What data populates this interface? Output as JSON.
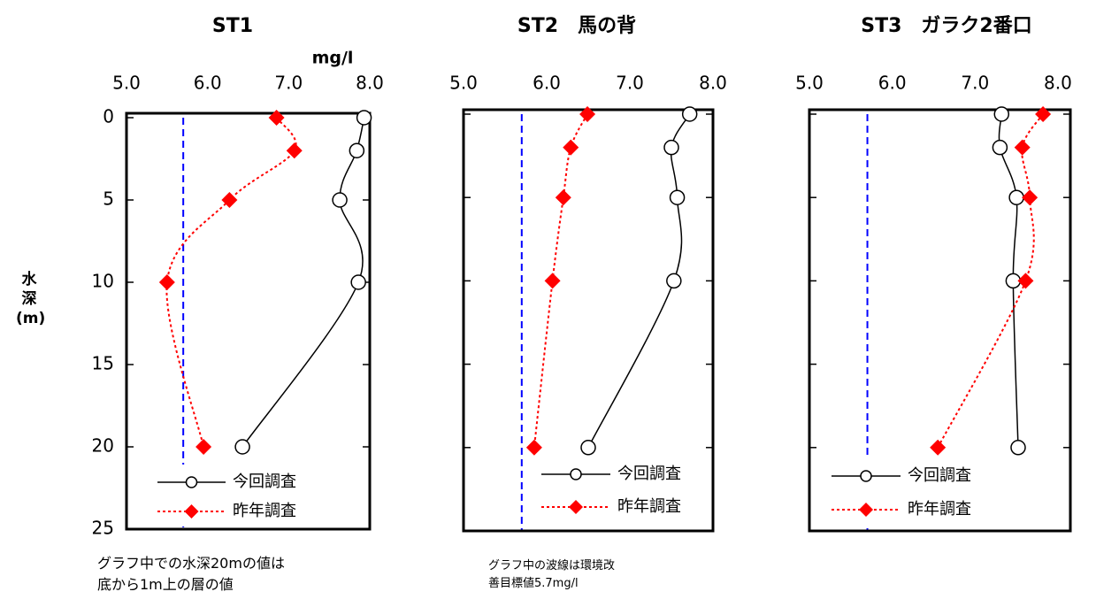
{
  "chart_data": [
    {
      "type": "line",
      "title": "ST1",
      "x_label": "mg/l",
      "y_label": [
        "水",
        "深",
        "(m)"
      ],
      "ytick_labels": true,
      "y": [
        0,
        2,
        5,
        10,
        20
      ],
      "xlim": [
        5,
        8
      ],
      "xticks": [
        {
          "value": 5,
          "label": "5.0"
        },
        {
          "value": 6,
          "label": "6.0"
        },
        {
          "value": 7,
          "label": "7.0"
        },
        {
          "value": 8,
          "label": "8.0"
        }
      ],
      "ylim": [
        0,
        25
      ],
      "yticks": [
        0,
        5,
        10,
        15,
        20,
        25
      ],
      "target": 5.7,
      "target_color": "#0000ff",
      "series": [
        {
          "name": "今回調査",
          "color": "#000000",
          "values": [
            7.93,
            7.84,
            7.63,
            7.86,
            6.43
          ]
        },
        {
          "name": "昨年調査",
          "color": "#ff0000",
          "values": [
            6.85,
            7.07,
            6.27,
            5.5,
            5.95
          ]
        }
      ],
      "annotations": [
        "グラフ中での水深20mの値は",
        "底から1m上の層の値"
      ]
    },
    {
      "type": "line",
      "title": "ST2　馬の背",
      "ytick_labels": false,
      "y": [
        0,
        2,
        5,
        10,
        20
      ],
      "xlim": [
        5,
        8
      ],
      "xticks": [
        {
          "value": 5,
          "label": "5.0"
        },
        {
          "value": 6,
          "label": "6.0"
        },
        {
          "value": 7,
          "label": "7.0"
        },
        {
          "value": 8,
          "label": "8.0"
        }
      ],
      "ylim": [
        0,
        25
      ],
      "yticks": [
        0,
        5,
        10,
        15,
        20,
        25
      ],
      "target": 5.7,
      "target_color": "#0000ff",
      "series": [
        {
          "name": "今回調査",
          "color": "#000000",
          "values": [
            7.72,
            7.5,
            7.57,
            7.53,
            6.5
          ]
        },
        {
          "name": "昨年調査",
          "color": "#ff0000",
          "values": [
            6.49,
            6.29,
            6.2,
            6.07,
            5.85
          ]
        }
      ],
      "annotations": [
        "グラフ中の波線は環境改",
        "善目標値5.7mg/l"
      ]
    },
    {
      "type": "line",
      "title": "ST3　ガラク2番口",
      "ytick_labels": false,
      "y": [
        0,
        2,
        5,
        10,
        20
      ],
      "xlim": [
        5,
        8.15
      ],
      "xticks": [
        {
          "value": 5,
          "label": "5.0"
        },
        {
          "value": 6,
          "label": "6.0"
        },
        {
          "value": 7,
          "label": "7.0"
        },
        {
          "value": 8,
          "label": "8.0"
        }
      ],
      "ylim": [
        0,
        25
      ],
      "yticks": [
        0,
        5,
        10,
        15,
        20,
        25
      ],
      "target": 5.7,
      "target_color": "#0000ff",
      "series": [
        {
          "name": "今回調査",
          "color": "#000000",
          "values": [
            7.32,
            7.3,
            7.5,
            7.46,
            7.52
          ]
        },
        {
          "name": "昨年調査",
          "color": "#ff0000",
          "values": [
            7.82,
            7.57,
            7.66,
            7.61,
            6.55
          ]
        }
      ]
    }
  ]
}
